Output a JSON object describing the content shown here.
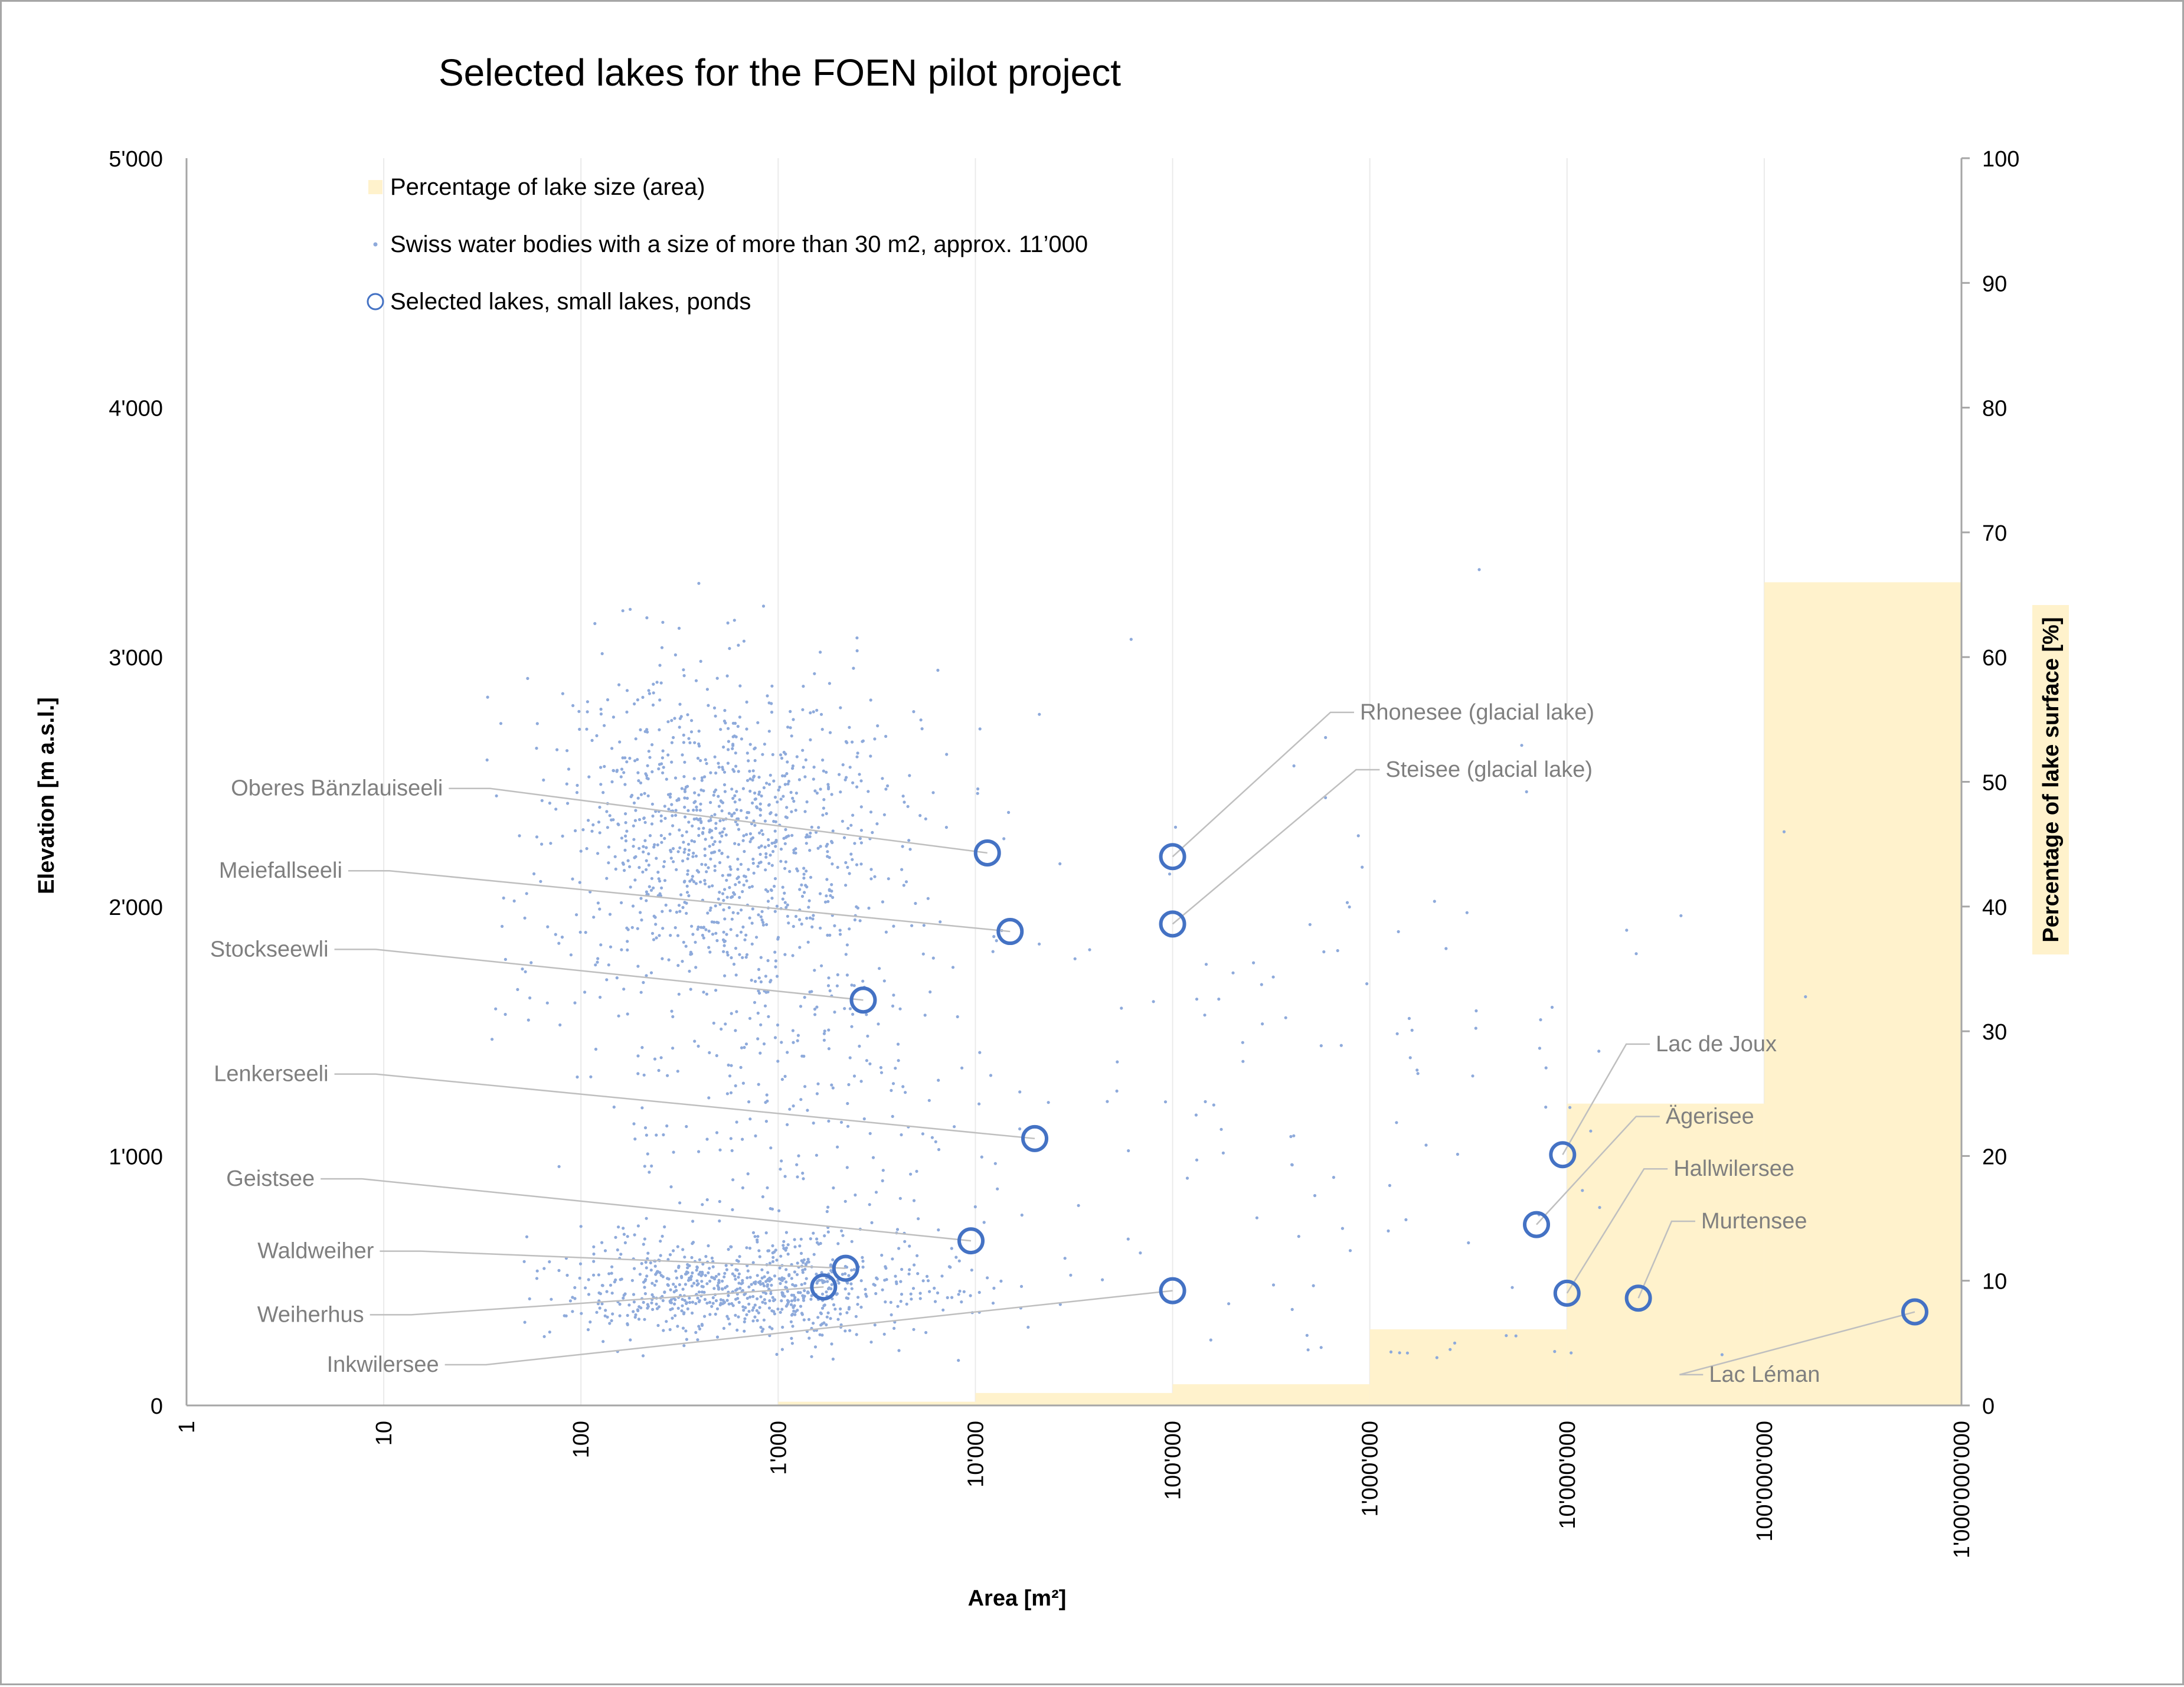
{
  "chart_data": {
    "type": "scatter",
    "title": "Selected lakes for the FOEN pilot project",
    "xlabel": "Area [m²]",
    "ylabel": "Elevation [m a.s.l.]",
    "y2label": "Percentage of lake surface [%]",
    "x_scale": "log",
    "xlim": [
      1,
      1000000000
    ],
    "ylim": [
      0,
      5000
    ],
    "y2lim": [
      0,
      100
    ],
    "x_ticks": [
      "1",
      "10",
      "100",
      "1'000",
      "10'000",
      "100'000",
      "1'000'000",
      "10'000'000",
      "100'000'000",
      "1'000'000'000"
    ],
    "y_ticks": [
      "0",
      "1'000",
      "2'000",
      "3'000",
      "4'000",
      "5'000"
    ],
    "y2_ticks": [
      "0",
      "10",
      "20",
      "30",
      "40",
      "50",
      "60",
      "70",
      "80",
      "90",
      "100"
    ],
    "grid": "vertical gridlines at each decade",
    "legend_placement": "top-left inside plot",
    "legend": [
      {
        "label": "Percentage of lake size (area)",
        "marker": "square-fill"
      },
      {
        "label": "Swiss water bodies with a size of more than 30 m2, approx. 11’000",
        "marker": "dot"
      },
      {
        "label": "Selected lakes, small lakes, ponds",
        "marker": "circle"
      }
    ],
    "colors": {
      "bars": "#fff2cc",
      "dots": "#8eaadb",
      "circles": "#4472c4",
      "leader": "#bfbfbf",
      "callout_text": "#7f7f7f"
    },
    "percentage_bars": {
      "name": "Percentage of lake size (area)",
      "bins": [
        {
          "x_from": 1000,
          "x_to": 10000,
          "value": 0.3
        },
        {
          "x_from": 10000,
          "x_to": 100000,
          "value": 1.0
        },
        {
          "x_from": 100000,
          "x_to": 1000000,
          "value": 1.7
        },
        {
          "x_from": 1000000,
          "x_to": 10000000,
          "value": 6.1
        },
        {
          "x_from": 10000000,
          "x_to": 100000000,
          "value": 24.2
        },
        {
          "x_from": 100000000,
          "x_to": 1000000000,
          "value": 66.0
        }
      ]
    },
    "water_bodies_distribution": {
      "name": "Swiss water bodies with a size of more than 30 m2, approx. 11’000",
      "count_shown": 2200,
      "clusters": [
        {
          "center_area_log10": 2.7,
          "sd_log10": 0.45,
          "center_elev": 2300,
          "sd_elev": 320,
          "share": 0.46
        },
        {
          "center_area_log10": 2.85,
          "sd_log10": 0.5,
          "center_elev": 470,
          "sd_elev": 100,
          "share": 0.34
        },
        {
          "center_area_log10": 3.0,
          "sd_log10": 0.55,
          "center_elev": 1300,
          "sd_elev": 450,
          "share": 0.14
        },
        {
          "center_area_log10": 5.8,
          "sd_log10": 1.1,
          "center_elev": 1200,
          "sd_elev": 750,
          "share": 0.06
        }
      ]
    },
    "selected_lakes": [
      {
        "name": "Rhonesee (glacial lake)",
        "area": 100000,
        "elevation": 2200,
        "label_x_log": 5.95,
        "label_elev": 2750,
        "align": "start"
      },
      {
        "name": "Steisee (glacial lake)",
        "area": 100000,
        "elevation": 1930,
        "label_x_log": 6.08,
        "label_elev": 2520,
        "align": "start"
      },
      {
        "name": "Oberes Bänzlauiseeli",
        "area": 11500,
        "elevation": 2215,
        "label_x_log": 1.3,
        "label_elev": 2445,
        "align": "end"
      },
      {
        "name": "Meiefallseeli",
        "area": 15000,
        "elevation": 1900,
        "label_x_log": 0.79,
        "label_elev": 2115,
        "align": "end"
      },
      {
        "name": "Stockseewli",
        "area": 2700,
        "elevation": 1625,
        "label_x_log": 0.72,
        "label_elev": 1800,
        "align": "end"
      },
      {
        "name": "Lenkerseeli",
        "area": 20000,
        "elevation": 1070,
        "label_x_log": 0.72,
        "label_elev": 1300,
        "align": "end"
      },
      {
        "name": "Geistsee",
        "area": 9500,
        "elevation": 660,
        "label_x_log": 0.65,
        "label_elev": 880,
        "align": "end"
      },
      {
        "name": "Waldweiher",
        "area": 2200,
        "elevation": 550,
        "label_x_log": 0.95,
        "label_elev": 590,
        "align": "end"
      },
      {
        "name": "Weiherhus",
        "area": 1700,
        "elevation": 475,
        "label_x_log": 0.9,
        "label_elev": 335,
        "align": "end"
      },
      {
        "name": "Inkwilersee",
        "area": 100000,
        "elevation": 460,
        "label_x_log": 1.28,
        "label_elev": 135,
        "align": "end"
      },
      {
        "name": "Lac de Joux",
        "area": 9500000,
        "elevation": 1005,
        "label_x_log": 7.45,
        "label_elev": 1420,
        "align": "start"
      },
      {
        "name": "Ägerisee",
        "area": 7000000,
        "elevation": 725,
        "label_x_log": 7.5,
        "label_elev": 1130,
        "align": "start"
      },
      {
        "name": "Hallwilersee",
        "area": 10000000,
        "elevation": 450,
        "label_x_log": 7.54,
        "label_elev": 920,
        "align": "start"
      },
      {
        "name": "Murtensee",
        "area": 23000000,
        "elevation": 430,
        "label_x_log": 7.68,
        "label_elev": 710,
        "align": "start"
      },
      {
        "name": "Lac Léman",
        "area": 580000000,
        "elevation": 375,
        "label_x_log": 7.72,
        "label_elev": 95,
        "align": "start"
      }
    ]
  }
}
